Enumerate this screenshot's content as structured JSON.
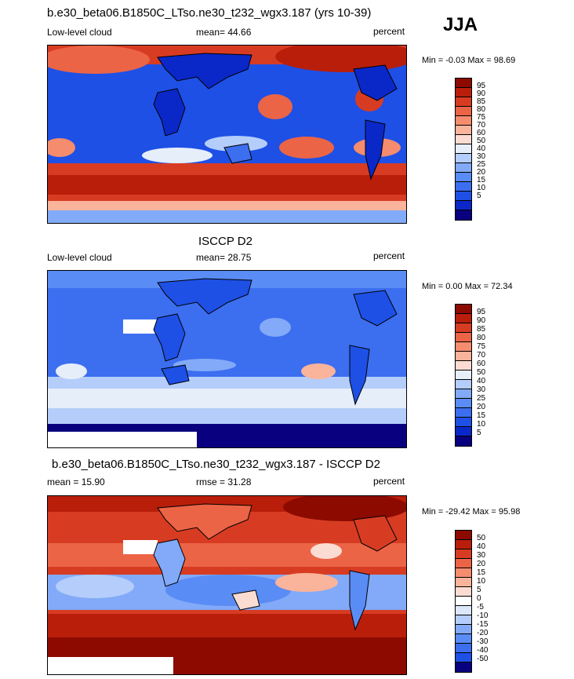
{
  "season": "JJA",
  "panels": [
    {
      "title": "b.e30_beta06.B1850C_LTso.ne30_t232_wgx3.187 (yrs 10-39)",
      "left": "Low-level cloud",
      "center": "mean=  44.66",
      "right": "percent",
      "minmax": "Min =  -0.03 Max =  98.69",
      "colorbar": [
        "95",
        "90",
        "85",
        "80",
        "75",
        "70",
        "60",
        "50",
        "40",
        "30",
        "25",
        "20",
        "15",
        "10",
        "5"
      ]
    },
    {
      "title": "ISCCP D2",
      "left": "Low-level cloud",
      "center": "mean=  28.75",
      "right": "percent",
      "minmax": "Min =   0.00 Max =  72.34",
      "colorbar": [
        "95",
        "90",
        "85",
        "80",
        "75",
        "70",
        "60",
        "50",
        "40",
        "30",
        "25",
        "20",
        "15",
        "10",
        "5"
      ]
    },
    {
      "title": "b.e30_beta06.B1850C_LTso.ne30_t232_wgx3.187 - ISCCP D2",
      "left": "mean =  15.90",
      "center": "rmse =  31.28",
      "right": "percent",
      "minmax": "Min = -29.42 Max =  95.98",
      "colorbar": [
        "50",
        "40",
        "30",
        "20",
        "15",
        "10",
        "5",
        "0",
        "-5",
        "-10",
        "-15",
        "-20",
        "-30",
        "-40",
        "-50"
      ]
    }
  ],
  "colors": {
    "seq": [
      "#08007e",
      "#0a28c8",
      "#1e50e6",
      "#3c6ef0",
      "#5a8cf5",
      "#82aaf8",
      "#b4cdfa",
      "#e6eefa",
      "#fadcd2",
      "#fab49b",
      "#f58c6e",
      "#eb6446",
      "#d73c23",
      "#b91e0a",
      "#8c0a00",
      "#640000"
    ],
    "diff": [
      "#08007e",
      "#0a28c8",
      "#1e50e6",
      "#3c6ef0",
      "#5a8cf5",
      "#82aaf8",
      "#b4cdfa",
      "#dce8fa",
      "#fadcd2",
      "#fab49b",
      "#f58c6e",
      "#eb6446",
      "#d73c23",
      "#b91e0a",
      "#8c0a00",
      "#640000"
    ],
    "land": "#000000"
  }
}
